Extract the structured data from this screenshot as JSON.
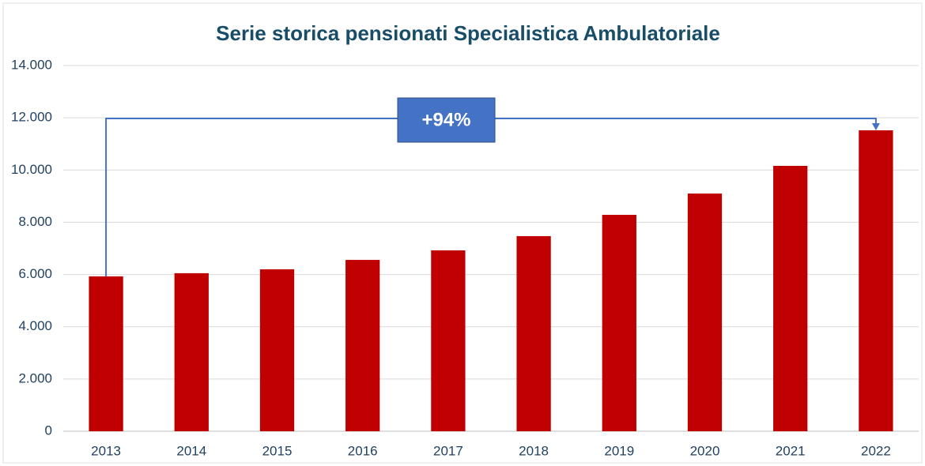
{
  "chart_data": {
    "type": "bar",
    "title": "Serie storica pensionati Specialistica Ambulatoriale",
    "annotation": "+94%",
    "categories": [
      "2013",
      "2014",
      "2015",
      "2016",
      "2017",
      "2018",
      "2019",
      "2020",
      "2021",
      "2022"
    ],
    "values": [
      5930,
      6050,
      6200,
      6560,
      6925,
      7470,
      8285,
      9100,
      10160,
      11520
    ],
    "color": "#c00000",
    "ylim": [
      0,
      14000
    ],
    "yticks": [
      0,
      {
        "value": 2000,
        "label": "2.000"
      },
      {
        "value": 4000,
        "label": "4.000"
      },
      {
        "value": 6000,
        "label": "6.000"
      },
      {
        "value": 8000,
        "label": "8.000"
      },
      {
        "value": 10000,
        "label": "10.000"
      },
      {
        "value": 12000,
        "label": "12.000"
      },
      {
        "value": 14000,
        "label": "14.000"
      }
    ],
    "grid": true
  }
}
